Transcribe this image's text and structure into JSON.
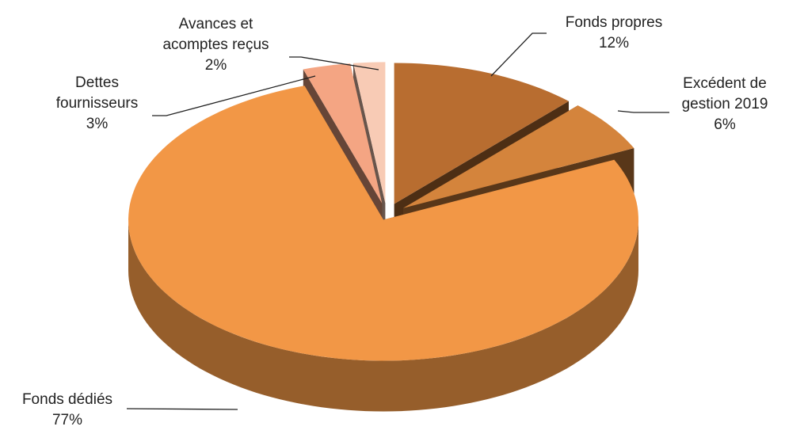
{
  "chart_data": {
    "type": "pie3d",
    "categories": [
      "Fonds propres",
      "Excédent de gestion 2019",
      "Fonds dédiés",
      "Dettes fournisseurs",
      "Avances et acomptes reçus"
    ],
    "values": [
      12,
      6,
      77,
      3,
      2
    ],
    "value_labels": [
      "12%",
      "6%",
      "77%",
      "3%",
      "2%"
    ],
    "colors": [
      "#b86d30",
      "#d4843c",
      "#f29746",
      "#f4a583",
      "#f8cbb5"
    ]
  }
}
